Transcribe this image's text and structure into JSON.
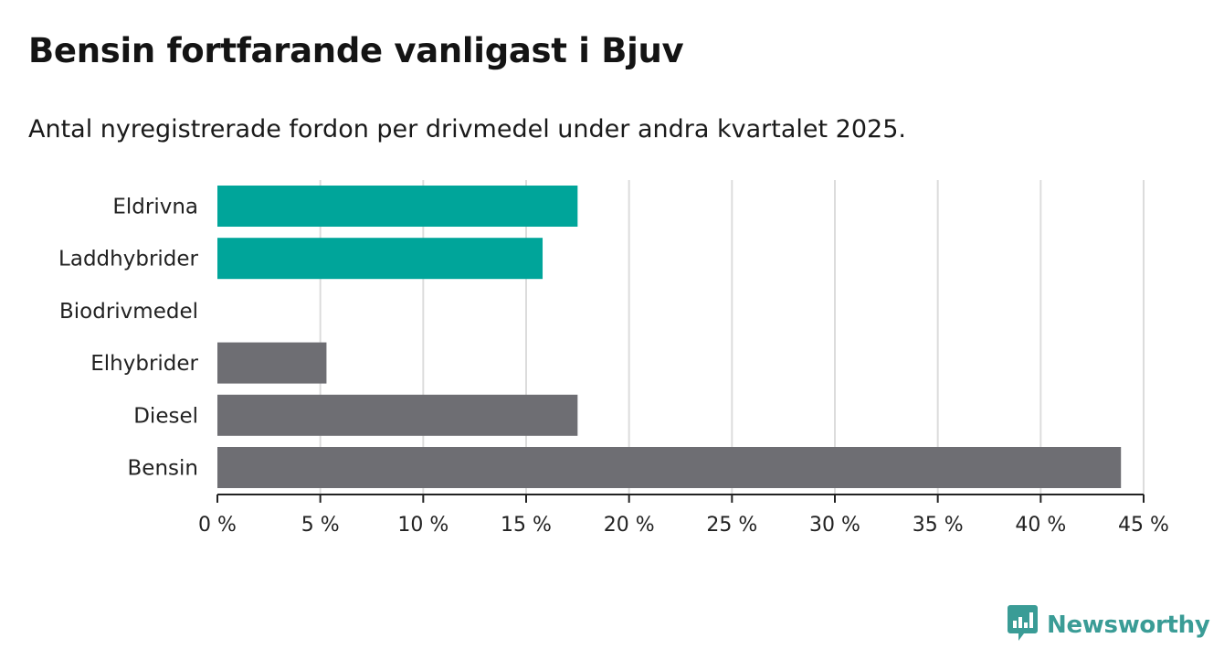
{
  "title": "Bensin fortfarande vanligast i Bjuv",
  "subtitle": "Antal nyregistrerade fordon per drivmedel under andra kvartalet 2025.",
  "brand": {
    "name": "Newsworthy",
    "icon": "newsworthy-logo-icon",
    "color": "#3a9c96"
  },
  "chart_data": {
    "type": "bar",
    "orientation": "horizontal",
    "categories": [
      "Eldrivna",
      "Laddhybrider",
      "Biodrivmedel",
      "Elhybrider",
      "Diesel",
      "Bensin"
    ],
    "values": [
      17.5,
      15.8,
      0,
      5.3,
      17.5,
      43.9
    ],
    "colors": [
      "#00a59a",
      "#00a59a",
      "#6e6e73",
      "#6e6e73",
      "#6e6e73",
      "#6e6e73"
    ],
    "xlim": [
      0,
      45
    ],
    "xticks": [
      0,
      5,
      10,
      15,
      20,
      25,
      30,
      35,
      40,
      45
    ],
    "xtick_labels": [
      "0 %",
      "5 %",
      "10 %",
      "15 %",
      "20 %",
      "25 %",
      "30 %",
      "35 %",
      "40 %",
      "45 %"
    ],
    "grid": "vertical",
    "xlabel": "",
    "ylabel": ""
  }
}
